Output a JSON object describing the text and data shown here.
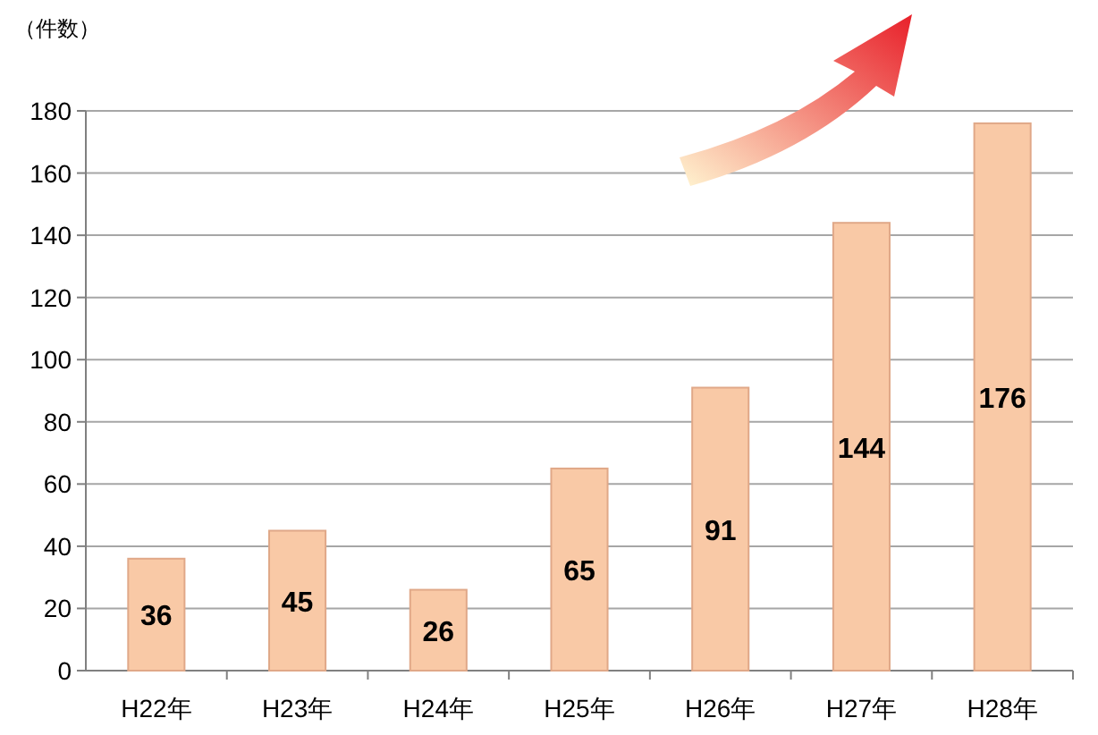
{
  "chart_data": {
    "type": "bar",
    "ylabel": "（件数）",
    "categories": [
      "H22年",
      "H23年",
      "H24年",
      "H25年",
      "H26年",
      "H27年",
      "H28年"
    ],
    "values": [
      36,
      45,
      26,
      65,
      91,
      144,
      176
    ],
    "color": "#f9c9a6",
    "ylim": [
      0,
      180
    ],
    "yticks": [
      0,
      20,
      40,
      60,
      80,
      100,
      120,
      140,
      160,
      180
    ],
    "grid": "y",
    "data_labels": true
  }
}
